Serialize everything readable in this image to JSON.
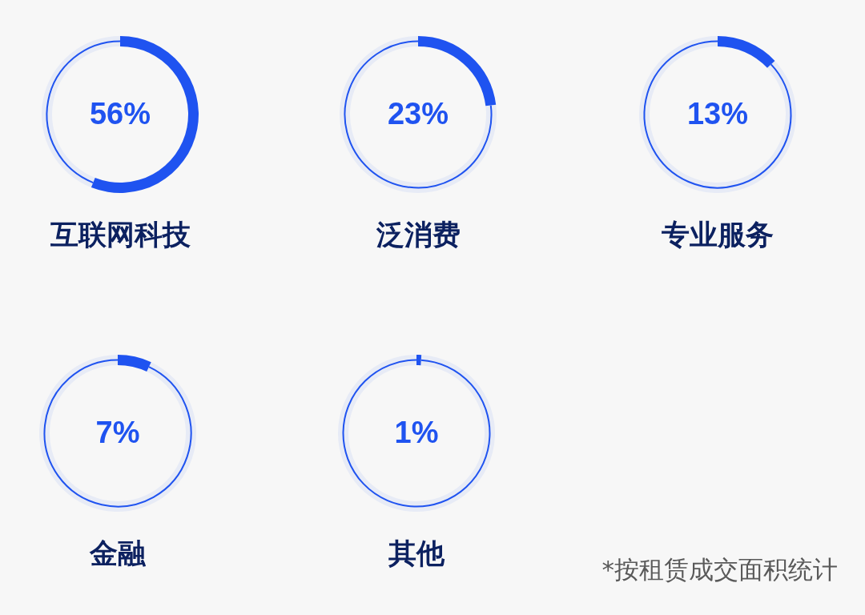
{
  "chart_data": [
    {
      "type": "donut",
      "title": "互联网科技",
      "categories": [
        null,
        null
      ],
      "values": [
        56,
        44
      ],
      "colors": [
        "#1f53f0",
        "#1f53f0"
      ],
      "value_labels": [
        "56%",
        null
      ]
    },
    {
      "type": "donut",
      "title": "泛消费",
      "categories": [
        null,
        null
      ],
      "values": [
        23,
        77
      ],
      "colors": [
        "#1f53f0",
        "#1f53f0"
      ],
      "value_labels": [
        "23%",
        null
      ]
    },
    {
      "type": "donut",
      "title": "专业服务",
      "categories": [
        null,
        null
      ],
      "values": [
        13,
        87
      ],
      "colors": [
        "#1f53f0",
        "#1f53f0"
      ],
      "value_labels": [
        "13%",
        null
      ]
    },
    {
      "type": "donut",
      "title": "金融",
      "categories": [
        null,
        null
      ],
      "values": [
        7,
        93
      ],
      "colors": [
        "#1f53f0",
        "#1f53f0"
      ],
      "value_labels": [
        "7%",
        null
      ]
    },
    {
      "type": "donut",
      "title": "其他",
      "categories": [
        null,
        null
      ],
      "values": [
        1,
        99
      ],
      "colors": [
        "#1f53f0",
        "#1f53f0"
      ],
      "value_labels": [
        "1%",
        null
      ],
      "annotations": [
        "*按租赁成交面积统计"
      ]
    }
  ]
}
